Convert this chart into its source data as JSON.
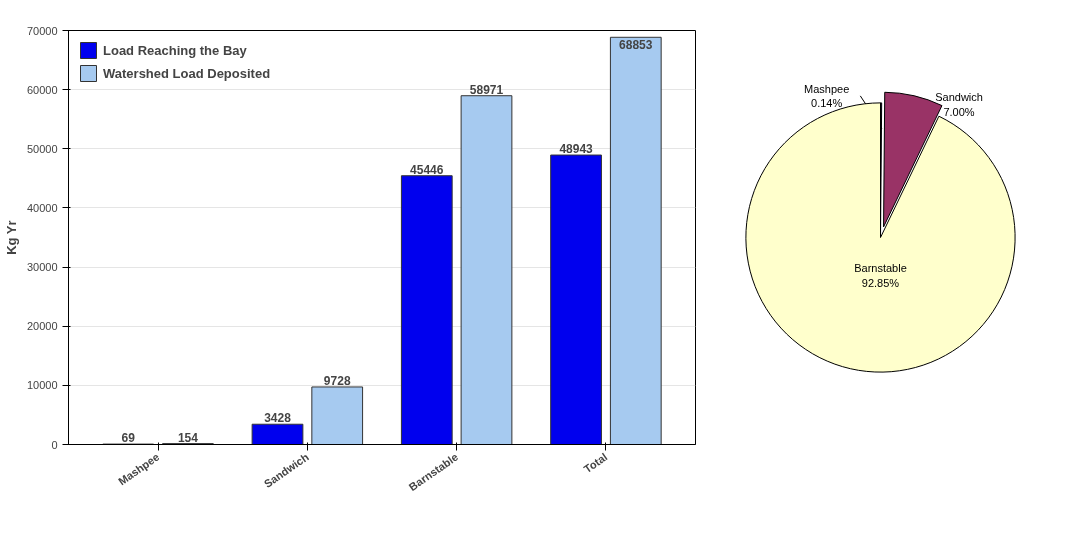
{
  "chart_data": [
    {
      "type": "bar",
      "ylabel": "Kg Yr",
      "categories": [
        "Mashpee",
        "Sandwich",
        "Barnstable",
        "Total"
      ],
      "series": [
        {
          "name": "Load Reaching the Bay",
          "color": "#0000ee",
          "values": [
            69,
            3428,
            45446,
            48943
          ]
        },
        {
          "name": "Watershed Load Deposited",
          "color": "#a6caf0",
          "values": [
            154,
            9728,
            58971,
            68853
          ]
        }
      ],
      "ylim": [
        0,
        70000
      ],
      "yticks": [
        0,
        10000,
        20000,
        30000,
        40000,
        50000,
        60000,
        70000
      ],
      "grid": "y",
      "data_labels": true,
      "legend": "top left"
    },
    {
      "type": "pie",
      "categories": [
        "Mashpee",
        "Sandwich",
        "Barnstable"
      ],
      "values": [
        0.14,
        7.0,
        92.85
      ],
      "value_labels": [
        "0.14%",
        "7.00%",
        "92.85%"
      ],
      "colors": [
        "#333399",
        "#993366",
        "#ffffcc"
      ]
    }
  ]
}
